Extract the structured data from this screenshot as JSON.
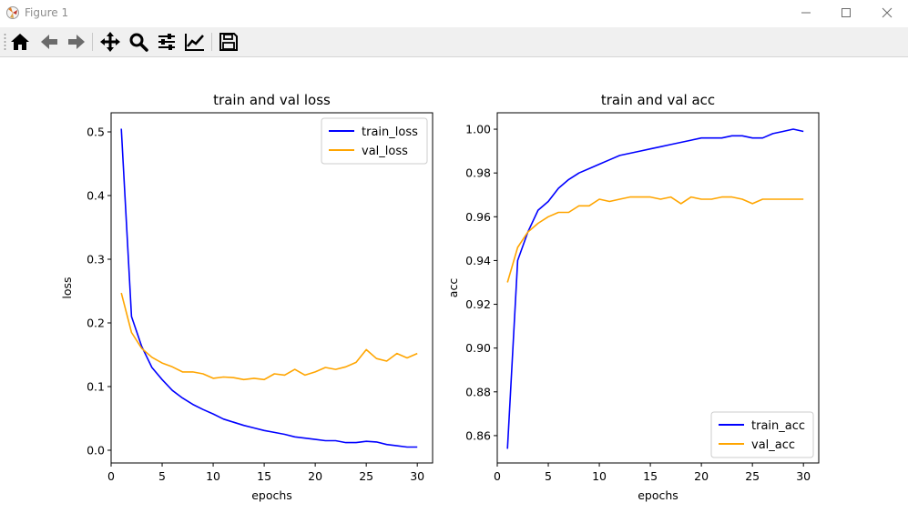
{
  "window": {
    "title": "Figure 1"
  },
  "toolbar": {
    "icons": [
      "home-icon",
      "back-arrow-icon",
      "forward-arrow-icon",
      "pan-icon",
      "zoom-icon",
      "configure-subplots-icon",
      "edit-axis-icon",
      "save-icon"
    ]
  },
  "colors": {
    "train": "#0000ff",
    "val": "#ffa500"
  },
  "chart_data": [
    {
      "type": "line",
      "title": "train and val loss",
      "xlabel": "epochs",
      "ylabel": "loss",
      "xlim": [
        0,
        31.5
      ],
      "ylim": [
        -0.02,
        0.53
      ],
      "xticks": [
        0,
        5,
        10,
        15,
        20,
        25,
        30
      ],
      "xtick_labels": [
        "0",
        "5",
        "10",
        "15",
        "20",
        "25",
        "30"
      ],
      "yticks": [
        0.0,
        0.1,
        0.2,
        0.3,
        0.4,
        0.5
      ],
      "ytick_labels": [
        "0.0",
        "0.1",
        "0.2",
        "0.3",
        "0.4",
        "0.5"
      ],
      "legend": "upper right",
      "grid": false,
      "x": [
        1,
        2,
        3,
        4,
        5,
        6,
        7,
        8,
        9,
        10,
        11,
        12,
        13,
        14,
        15,
        16,
        17,
        18,
        19,
        20,
        21,
        22,
        23,
        24,
        25,
        26,
        27,
        28,
        29,
        30
      ],
      "series": [
        {
          "name": "train_loss",
          "color": "#0000ff",
          "values": [
            0.505,
            0.21,
            0.163,
            0.13,
            0.111,
            0.094,
            0.082,
            0.072,
            0.064,
            0.057,
            0.049,
            0.044,
            0.039,
            0.035,
            0.031,
            0.028,
            0.025,
            0.021,
            0.019,
            0.017,
            0.015,
            0.015,
            0.012,
            0.012,
            0.014,
            0.013,
            0.009,
            0.007,
            0.005,
            0.005
          ]
        },
        {
          "name": "val_loss",
          "color": "#ffa500",
          "values": [
            0.247,
            0.185,
            0.16,
            0.146,
            0.137,
            0.131,
            0.123,
            0.123,
            0.12,
            0.113,
            0.115,
            0.114,
            0.111,
            0.113,
            0.111,
            0.12,
            0.118,
            0.127,
            0.118,
            0.123,
            0.13,
            0.127,
            0.131,
            0.138,
            0.158,
            0.144,
            0.14,
            0.152,
            0.145,
            0.152
          ]
        }
      ]
    },
    {
      "type": "line",
      "title": "train and val acc",
      "xlabel": "epochs",
      "ylabel": "acc",
      "xlim": [
        0,
        31.5
      ],
      "ylim": [
        0.8475,
        1.0075
      ],
      "xticks": [
        0,
        5,
        10,
        15,
        20,
        25,
        30
      ],
      "xtick_labels": [
        "0",
        "5",
        "10",
        "15",
        "20",
        "25",
        "30"
      ],
      "yticks": [
        0.86,
        0.88,
        0.9,
        0.92,
        0.94,
        0.96,
        0.98,
        1.0
      ],
      "ytick_labels": [
        "0.86",
        "0.88",
        "0.90",
        "0.92",
        "0.94",
        "0.96",
        "0.98",
        "1.00"
      ],
      "legend": "lower right",
      "grid": false,
      "x": [
        1,
        2,
        3,
        4,
        5,
        6,
        7,
        8,
        9,
        10,
        11,
        12,
        13,
        14,
        15,
        16,
        17,
        18,
        19,
        20,
        21,
        22,
        23,
        24,
        25,
        26,
        27,
        28,
        29,
        30
      ],
      "series": [
        {
          "name": "train_acc",
          "color": "#0000ff",
          "values": [
            0.854,
            0.94,
            0.953,
            0.963,
            0.967,
            0.973,
            0.977,
            0.98,
            0.982,
            0.984,
            0.986,
            0.988,
            0.989,
            0.99,
            0.991,
            0.992,
            0.993,
            0.994,
            0.995,
            0.996,
            0.996,
            0.996,
            0.997,
            0.997,
            0.996,
            0.996,
            0.998,
            0.999,
            1.0,
            0.999
          ]
        },
        {
          "name": "val_acc",
          "color": "#ffa500",
          "values": [
            0.93,
            0.946,
            0.953,
            0.957,
            0.96,
            0.962,
            0.962,
            0.965,
            0.965,
            0.968,
            0.967,
            0.968,
            0.969,
            0.969,
            0.969,
            0.968,
            0.969,
            0.966,
            0.969,
            0.968,
            0.968,
            0.969,
            0.969,
            0.968,
            0.966,
            0.968,
            0.968,
            0.968,
            0.968,
            0.968
          ]
        }
      ]
    }
  ]
}
